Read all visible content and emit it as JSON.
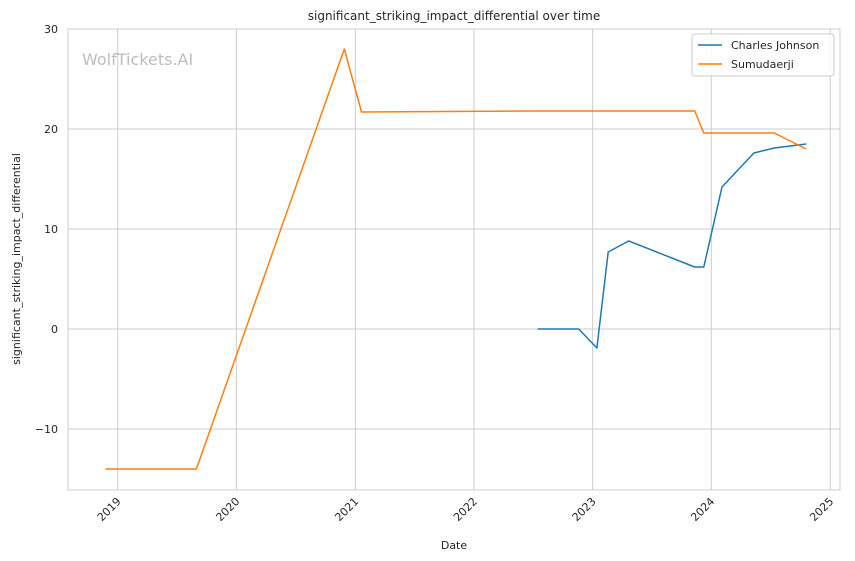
{
  "chart_data": {
    "type": "line",
    "title": "significant_striking_impact_differential over time",
    "xlabel": "Date",
    "ylabel": "significant_striking_impact_differential",
    "watermark": "WolfTickets.AI",
    "xlim": [
      "2018-08-01",
      "2025-01-31"
    ],
    "ylim": [
      -16.1,
      30
    ],
    "x_ticks": [
      "2019-01-01",
      "2020-01-01",
      "2021-01-01",
      "2022-01-01",
      "2023-01-01",
      "2024-01-01",
      "2025-01-01"
    ],
    "x_tick_labels": [
      "2019",
      "2020",
      "2021",
      "2022",
      "2023",
      "2024",
      "2025"
    ],
    "y_ticks": [
      -10,
      0,
      10,
      20,
      30
    ],
    "y_tick_labels": [
      "−10",
      "0",
      "10",
      "20",
      "30"
    ],
    "grid": true,
    "legend_position": "top-right",
    "series": [
      {
        "name": "Charles Johnson",
        "color": "#1f77b4",
        "points": [
          [
            "2022-07-16",
            0.0
          ],
          [
            "2022-11-19",
            0.0
          ],
          [
            "2023-01-14",
            -1.9
          ],
          [
            "2023-02-18",
            7.7
          ],
          [
            "2023-04-22",
            8.8
          ],
          [
            "2023-11-11",
            6.2
          ],
          [
            "2023-12-09",
            6.2
          ],
          [
            "2024-02-03",
            14.2
          ],
          [
            "2024-05-11",
            17.6
          ],
          [
            "2024-07-13",
            18.1
          ],
          [
            "2024-10-19",
            18.5
          ]
        ]
      },
      {
        "name": "Sumudaerji",
        "color": "#ff7f0e",
        "points": [
          [
            "2018-11-24",
            -14.0
          ],
          [
            "2019-08-31",
            -14.0
          ],
          [
            "2020-11-28",
            28.0
          ],
          [
            "2021-01-20",
            21.7
          ],
          [
            "2022-07-16",
            21.8
          ],
          [
            "2023-11-11",
            21.8
          ],
          [
            "2023-12-09",
            19.6
          ],
          [
            "2024-07-13",
            19.6
          ],
          [
            "2024-10-19",
            18.0
          ]
        ]
      }
    ]
  }
}
